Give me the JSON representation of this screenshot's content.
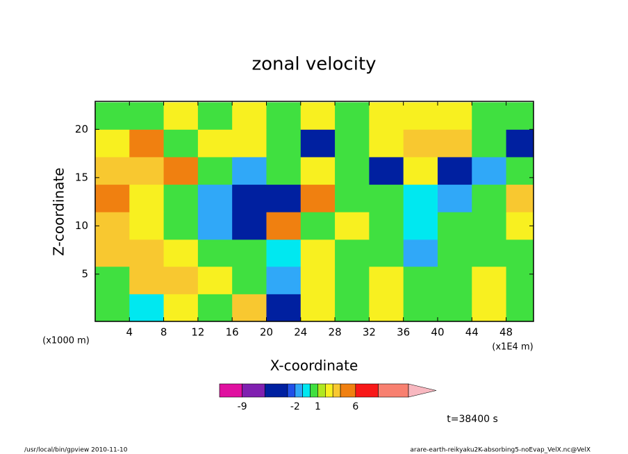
{
  "chart_data": {
    "type": "contour",
    "title": "zonal velocity",
    "xlabel": "X-coordinate",
    "ylabel": "Z-coordinate",
    "xunit": "(x1E4 m)",
    "yunit": "(x1000 m)",
    "annotation": "t=38400 s",
    "footer_left": "/usr/local/bin/gpview  2010-11-10",
    "footer_right": "arare-earth-reikyaku2K-absorbing5-noEvap_VelX.nc@VelX",
    "xlim": [
      0,
      51.2
    ],
    "ylim": [
      0.1,
      22.9
    ],
    "xticks": [
      4,
      8,
      12,
      16,
      20,
      24,
      28,
      32,
      36,
      40,
      44,
      48
    ],
    "yticks": [
      5,
      10,
      15,
      20
    ],
    "field": {
      "x": [
        2,
        6,
        10,
        14,
        18,
        22,
        26,
        30,
        34,
        38,
        42,
        46,
        50
      ],
      "z": [
        1.5,
        4.4,
        7.2,
        10,
        12.9,
        15.7,
        18.6,
        21.4
      ],
      "values": [
        [
          0.5,
          -0.5,
          2.5,
          0.5,
          3.5,
          -4,
          2.5,
          0.5,
          2.5,
          0.5,
          0.5,
          2.5,
          0.5
        ],
        [
          0.5,
          3.5,
          3.5,
          2.5,
          0.5,
          -1.5,
          2.5,
          0.5,
          2.5,
          0.5,
          0.5,
          2.5,
          0.5
        ],
        [
          3.5,
          3.5,
          2.5,
          0.5,
          0.5,
          -0.5,
          2.5,
          0.5,
          0.5,
          -1.5,
          0.5,
          0.5,
          0.5
        ],
        [
          3.5,
          2.5,
          0.5,
          -1.5,
          -4,
          5,
          0.5,
          2.5,
          0.5,
          -0.5,
          0.5,
          0.5,
          2.5
        ],
        [
          5,
          2.5,
          0.5,
          -1.5,
          -4,
          -4,
          5,
          0.5,
          0.5,
          -0.5,
          -1.5,
          0.5,
          3.5
        ],
        [
          3.5,
          3.5,
          5,
          0.5,
          -1.5,
          0.5,
          2.5,
          0.5,
          -4,
          2.5,
          -4,
          -1.5,
          0.5
        ],
        [
          2.5,
          5,
          0.5,
          2.5,
          2.5,
          0.5,
          -4,
          0.5,
          2.5,
          3.5,
          3.5,
          0.5,
          -4
        ],
        [
          0.5,
          0.5,
          2.5,
          0.5,
          2.5,
          0.5,
          2.5,
          0.5,
          2.5,
          2.5,
          2.5,
          0.5,
          0.5
        ]
      ]
    },
    "colorbar": {
      "levels": [
        -12,
        -9,
        -6,
        -3,
        -2,
        -1,
        0,
        1,
        2,
        3,
        4,
        6,
        9,
        13
      ],
      "colors": [
        "#e010a0",
        "#8020b0",
        "#0020a0",
        "#2050e8",
        "#30a8f8",
        "#00e8f0",
        "#40e040",
        "#b0e820",
        "#f8f020",
        "#f8c830",
        "#f08010",
        "#f81818",
        "#f88070"
      ],
      "over_color": "#f8b8c0",
      "ticks": [
        -9,
        -2,
        1,
        6
      ]
    }
  }
}
